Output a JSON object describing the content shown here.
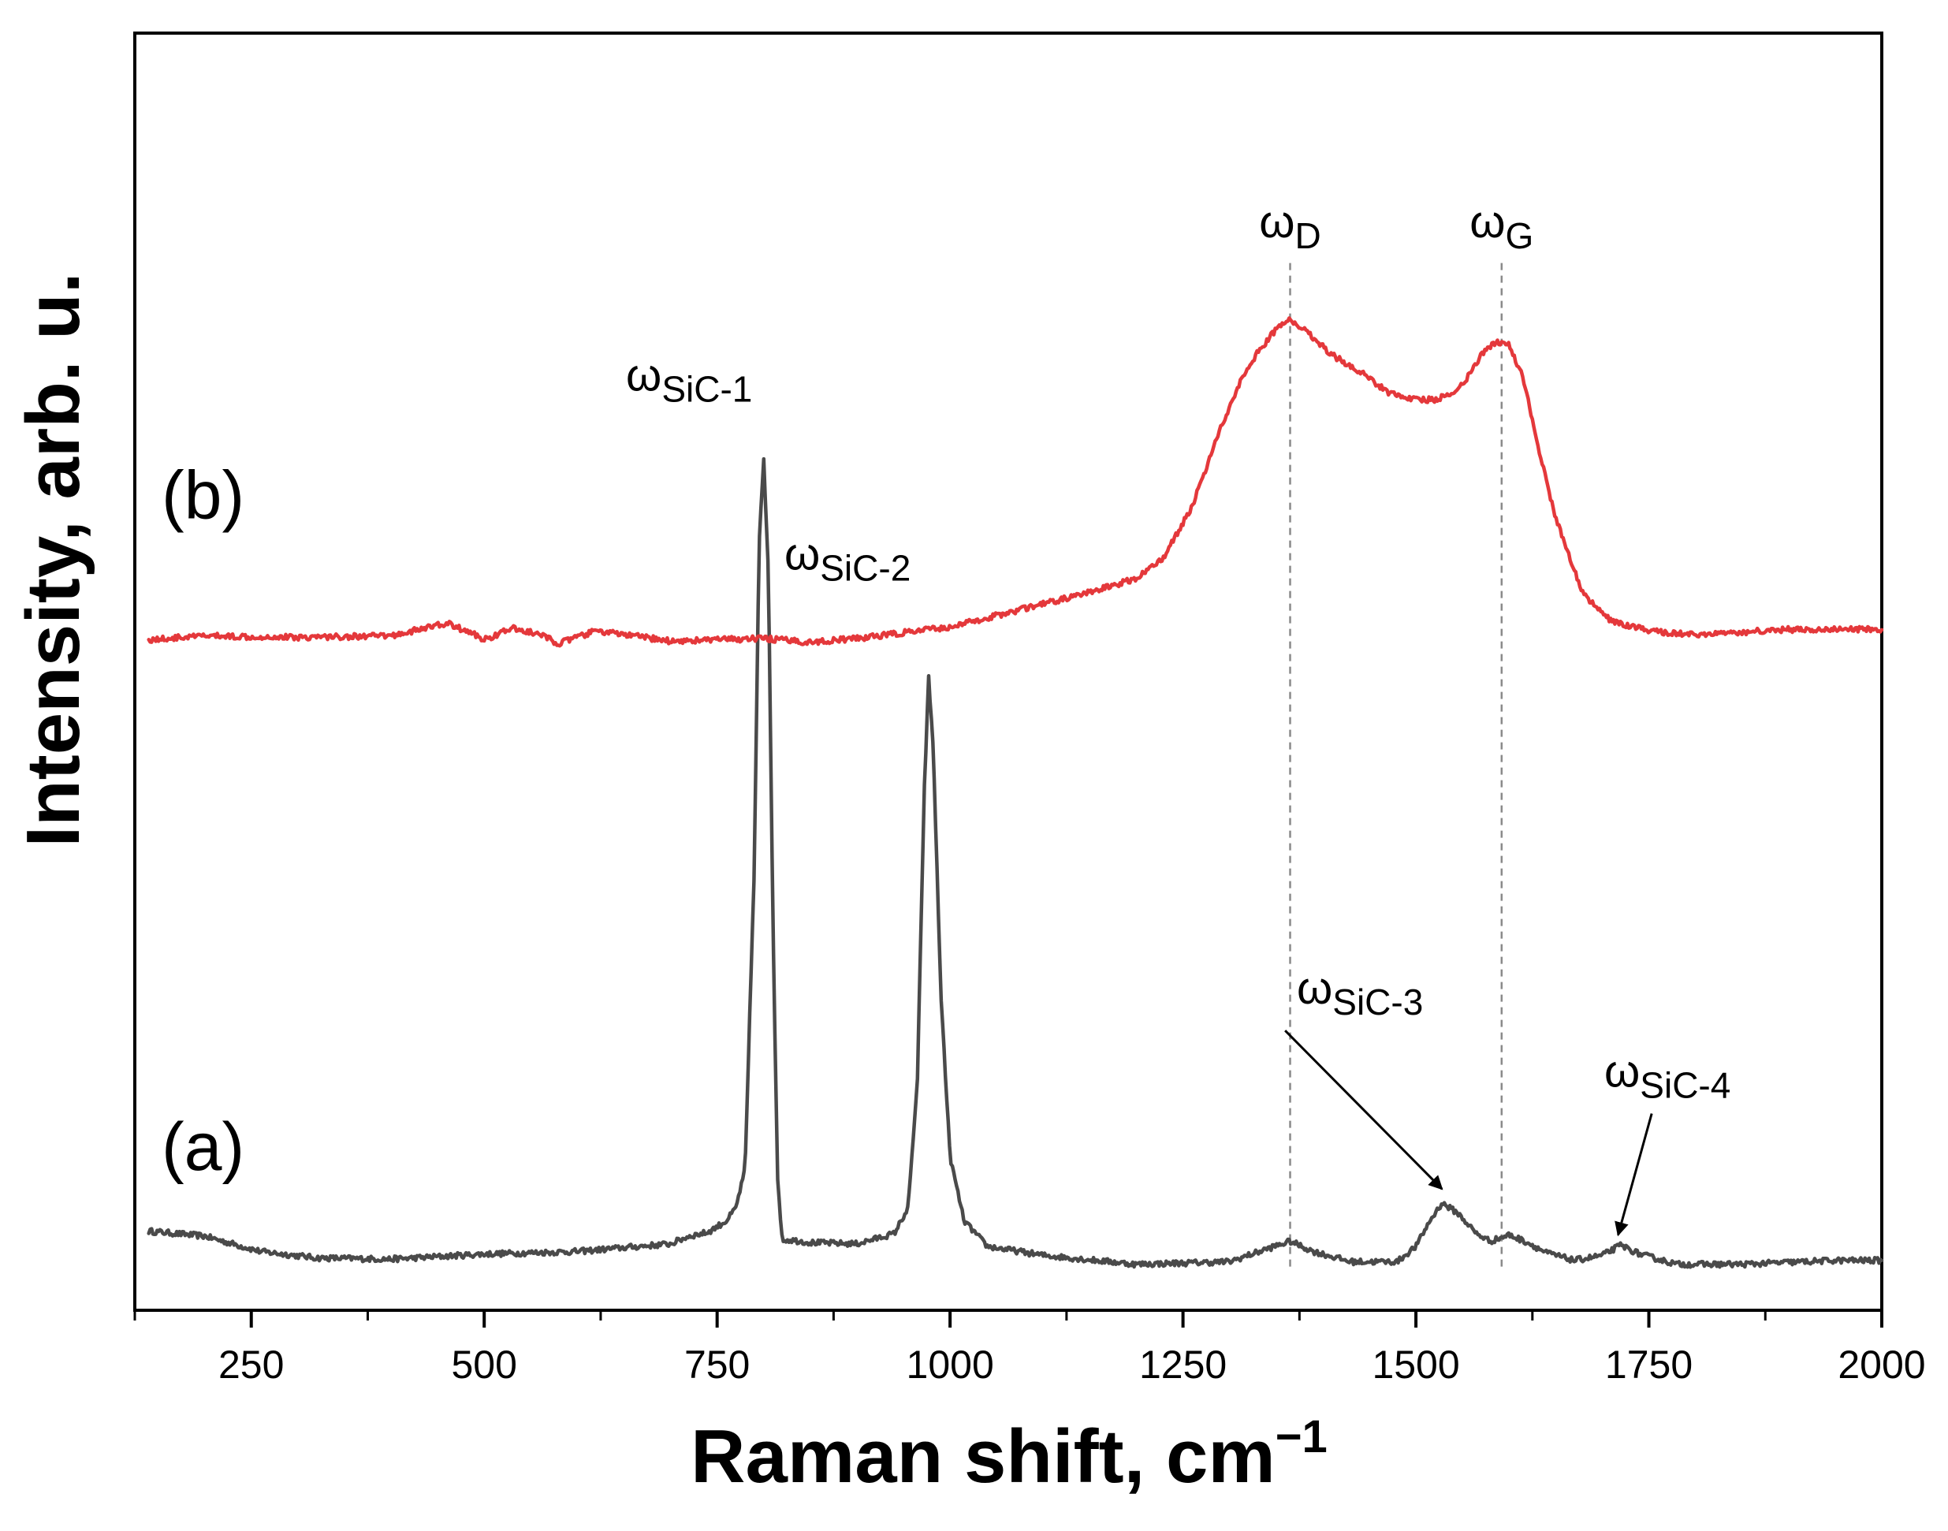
{
  "chart_data": {
    "type": "line",
    "title": "",
    "xlabel": "Raman shift, cm",
    "xlabel_superscript": "−1",
    "ylabel": "Intensity, arb. u.",
    "xlim": [
      125,
      2000
    ],
    "ylim": [
      0,
      100
    ],
    "x_ticks": [
      250,
      500,
      750,
      1000,
      1250,
      1500,
      1750,
      2000
    ],
    "x_tick_labels": [
      "250",
      "500",
      "750",
      "1000",
      "1250",
      "1500",
      "1750",
      "2000"
    ],
    "y_ticks_shown": false,
    "grid": false,
    "legend": "none",
    "series": [
      {
        "name": "(a)",
        "color": "#4a4a4a",
        "x": [
          140,
          200,
          260,
          320,
          400,
          500,
          600,
          700,
          720,
          740,
          760,
          770,
          780,
          790,
          795,
          800,
          805,
          810,
          815,
          820,
          830,
          850,
          900,
          940,
          955,
          965,
          972,
          977,
          982,
          990,
          1000,
          1015,
          1040,
          1100,
          1200,
          1300,
          1340,
          1365,
          1390,
          1430,
          1480,
          1500,
          1515,
          1528,
          1545,
          1565,
          1580,
          1600,
          1620,
          1640,
          1670,
          1700,
          1720,
          1740,
          1780,
          1850,
          1950,
          2000
        ],
        "y": [
          6.2,
          5.8,
          4.6,
          4.1,
          4.0,
          4.4,
          4.6,
          5.2,
          5.8,
          6.1,
          7.0,
          8.0,
          11.0,
          35.0,
          60.0,
          66.5,
          58.0,
          30.0,
          10.0,
          5.5,
          5.5,
          5.3,
          5.2,
          6.0,
          8.0,
          18.0,
          40.0,
          49.5,
          44.0,
          25.0,
          12.0,
          7.0,
          5.0,
          4.3,
          3.6,
          3.8,
          4.8,
          5.4,
          4.6,
          3.8,
          3.8,
          5.0,
          7.0,
          8.4,
          7.6,
          6.0,
          5.4,
          5.9,
          5.3,
          4.5,
          3.9,
          4.3,
          5.1,
          4.4,
          3.6,
          3.6,
          3.9,
          3.9
        ]
      },
      {
        "name": "(b)",
        "color": "#e4383b",
        "x": [
          140,
          200,
          300,
          400,
          460,
          490,
          500,
          530,
          560,
          580,
          620,
          700,
          800,
          850,
          900,
          1000,
          1050,
          1100,
          1150,
          1200,
          1230,
          1260,
          1290,
          1310,
          1330,
          1350,
          1365,
          1385,
          1410,
          1440,
          1470,
          1500,
          1520,
          1540,
          1555,
          1570,
          1585,
          1600,
          1615,
          1630,
          1650,
          1680,
          1710,
          1750,
          1800,
          1900,
          2000
        ],
        "y": [
          52.5,
          52.8,
          52.7,
          52.8,
          53.8,
          52.9,
          52.5,
          53.4,
          52.9,
          52.2,
          53.2,
          52.4,
          52.6,
          52.3,
          52.6,
          53.5,
          54.4,
          55.3,
          56.2,
          57.3,
          59.0,
          63.0,
          69.0,
          72.5,
          75.0,
          76.8,
          77.6,
          76.5,
          74.8,
          73.5,
          71.9,
          71.3,
          71.3,
          71.8,
          73.0,
          74.8,
          75.8,
          75.6,
          73.0,
          68.0,
          62.0,
          56.0,
          53.9,
          53.2,
          52.9,
          53.3,
          53.3
        ]
      }
    ],
    "panel_labels": [
      {
        "text": "(a)",
        "series": "(a)"
      },
      {
        "text": "(b)",
        "series": "(b)"
      }
    ],
    "reference_lines": [
      {
        "x": 1365,
        "style": "dashed",
        "label": "ωD"
      },
      {
        "x": 1592,
        "style": "dashed",
        "label": "ωG"
      }
    ],
    "annotations": [
      {
        "symbol": "ω",
        "subscript": "D",
        "x": 1365,
        "y": 84
      },
      {
        "symbol": "ω",
        "subscript": "G",
        "x": 1592,
        "y": 84
      },
      {
        "symbol": "ω",
        "subscript": "SiC-1",
        "x": 720,
        "y": 72
      },
      {
        "symbol": "ω",
        "subscript": "SiC-2",
        "x": 890,
        "y": 58
      },
      {
        "symbol": "ω",
        "subscript": "SiC-3",
        "x": 1440,
        "y": 24,
        "arrow_to": [
          1528,
          9
        ]
      },
      {
        "symbol": "ω",
        "subscript": "SiC-4",
        "x": 1770,
        "y": 17.5,
        "arrow_to": [
          1717,
          5.4
        ]
      }
    ]
  }
}
